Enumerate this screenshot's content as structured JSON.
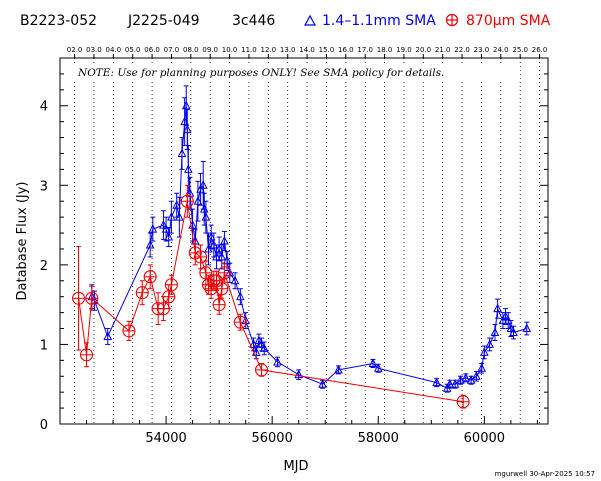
{
  "header": {
    "source_name": "B2223-052",
    "j2000_name": "J2225-049",
    "alias": "3c446",
    "legend_sma_low": "1.4–1.1mm SMA",
    "legend_sma_high": "870μm SMA"
  },
  "note": "NOTE: Use for planning purposes ONLY!  See SMA policy for details.",
  "stamp": "mgurwell 30-Apr-2025 10:57",
  "colors": {
    "low_band": "#0000ee",
    "high_band": "#ee0000",
    "year_line": "#000000"
  },
  "chart_data": {
    "type": "scatter",
    "title": "",
    "xlabel": "MJD",
    "ylabel": "Database Flux (Jy)",
    "xlim": [
      52000,
      61200
    ],
    "ylim": [
      0,
      4.6
    ],
    "grid": "vertical dotted year lines",
    "legend_placement": "top",
    "x_ticks": [
      54000,
      56000,
      58000,
      60000
    ],
    "y_ticks": [
      0,
      1,
      2,
      3,
      4
    ],
    "top_axis_labels": [
      "02.0",
      "03.0",
      "04.0",
      "05.0",
      "06.0",
      "07.0",
      "08.0",
      "09.0",
      "10.0",
      "11.0",
      "12.0",
      "13.0",
      "14.0",
      "15.0",
      "16.0",
      "17.0",
      "18.0",
      "19.0",
      "20.0",
      "21.0",
      "22.0",
      "23.0",
      "24.0",
      "25.0",
      "26.0"
    ],
    "top_axis_mjd": [
      52275,
      52640,
      53005,
      53371,
      53736,
      54101,
      54466,
      54832,
      55197,
      55562,
      55927,
      56293,
      56658,
      57023,
      57388,
      57754,
      58119,
      58484,
      58849,
      59215,
      59580,
      59945,
      60310,
      60676,
      61041
    ],
    "series": [
      {
        "name": "1.4–1.1mm SMA",
        "marker": "triangle",
        "x": [
          52600,
          52650,
          52900,
          53700,
          53750,
          53950,
          54000,
          54050,
          54100,
          54200,
          54250,
          54300,
          54350,
          54380,
          54400,
          54420,
          54450,
          54500,
          54550,
          54600,
          54650,
          54700,
          54720,
          54750,
          54800,
          54850,
          54900,
          54950,
          55000,
          55050,
          55100,
          55150,
          55200,
          55300,
          55400,
          55500,
          55650,
          55700,
          55750,
          55800,
          55850,
          56100,
          56500,
          56950,
          57250,
          57900,
          58000,
          59100,
          59300,
          59350,
          59450,
          59550,
          59650,
          59750,
          59850,
          59950,
          60000,
          60100,
          60200,
          60250,
          60350,
          60400,
          60450,
          60500,
          60550,
          60800
        ],
        "y": [
          1.6,
          1.55,
          1.1,
          2.25,
          2.45,
          2.5,
          2.45,
          2.35,
          2.6,
          2.75,
          2.6,
          3.4,
          3.8,
          4.0,
          3.7,
          3.2,
          2.9,
          2.5,
          2.3,
          2.8,
          2.95,
          3.0,
          2.7,
          2.6,
          2.2,
          2.35,
          2.25,
          2.1,
          2.2,
          2.1,
          2.3,
          2.05,
          1.9,
          1.8,
          1.6,
          1.3,
          1.0,
          0.9,
          1.05,
          1.0,
          0.95,
          0.78,
          0.62,
          0.5,
          0.68,
          0.76,
          0.7,
          0.52,
          0.45,
          0.5,
          0.5,
          0.55,
          0.58,
          0.55,
          0.6,
          0.7,
          0.9,
          1.0,
          1.15,
          1.45,
          1.3,
          1.35,
          1.3,
          1.2,
          1.15,
          1.2
        ],
        "err": [
          0.15,
          0.12,
          0.1,
          0.15,
          0.15,
          0.18,
          0.15,
          0.12,
          0.2,
          0.15,
          0.25,
          0.2,
          0.3,
          0.25,
          0.25,
          0.3,
          0.2,
          0.2,
          0.15,
          0.25,
          0.2,
          0.3,
          0.2,
          0.2,
          0.2,
          0.15,
          0.15,
          0.15,
          0.15,
          0.15,
          0.12,
          0.12,
          0.12,
          0.1,
          0.1,
          0.1,
          0.08,
          0.08,
          0.08,
          0.08,
          0.08,
          0.06,
          0.06,
          0.05,
          0.05,
          0.05,
          0.05,
          0.05,
          0.05,
          0.05,
          0.05,
          0.05,
          0.05,
          0.05,
          0.06,
          0.06,
          0.08,
          0.08,
          0.1,
          0.12,
          0.1,
          0.1,
          0.1,
          0.1,
          0.08,
          0.08
        ]
      },
      {
        "name": "870μm SMA",
        "marker": "circle-plus",
        "x": [
          52350,
          52500,
          52600,
          53300,
          53550,
          53700,
          53850,
          53950,
          54050,
          54100,
          54400,
          54550,
          54650,
          54750,
          54800,
          54850,
          54900,
          54950,
          55000,
          55050,
          55100,
          55400,
          55800,
          59600
        ],
        "y": [
          1.58,
          0.87,
          1.58,
          1.17,
          1.65,
          1.85,
          1.45,
          1.45,
          1.6,
          1.75,
          2.8,
          2.15,
          2.1,
          1.9,
          1.75,
          1.7,
          1.8,
          1.8,
          1.5,
          1.7,
          1.9,
          1.28,
          0.68,
          0.28
        ],
        "err": [
          0.65,
          0.15,
          0.15,
          0.12,
          0.15,
          0.15,
          0.2,
          0.15,
          0.15,
          0.12,
          0.2,
          0.15,
          0.15,
          0.15,
          0.12,
          0.12,
          0.12,
          0.12,
          0.12,
          0.12,
          0.12,
          0.1,
          0.08,
          0.08
        ]
      }
    ]
  }
}
